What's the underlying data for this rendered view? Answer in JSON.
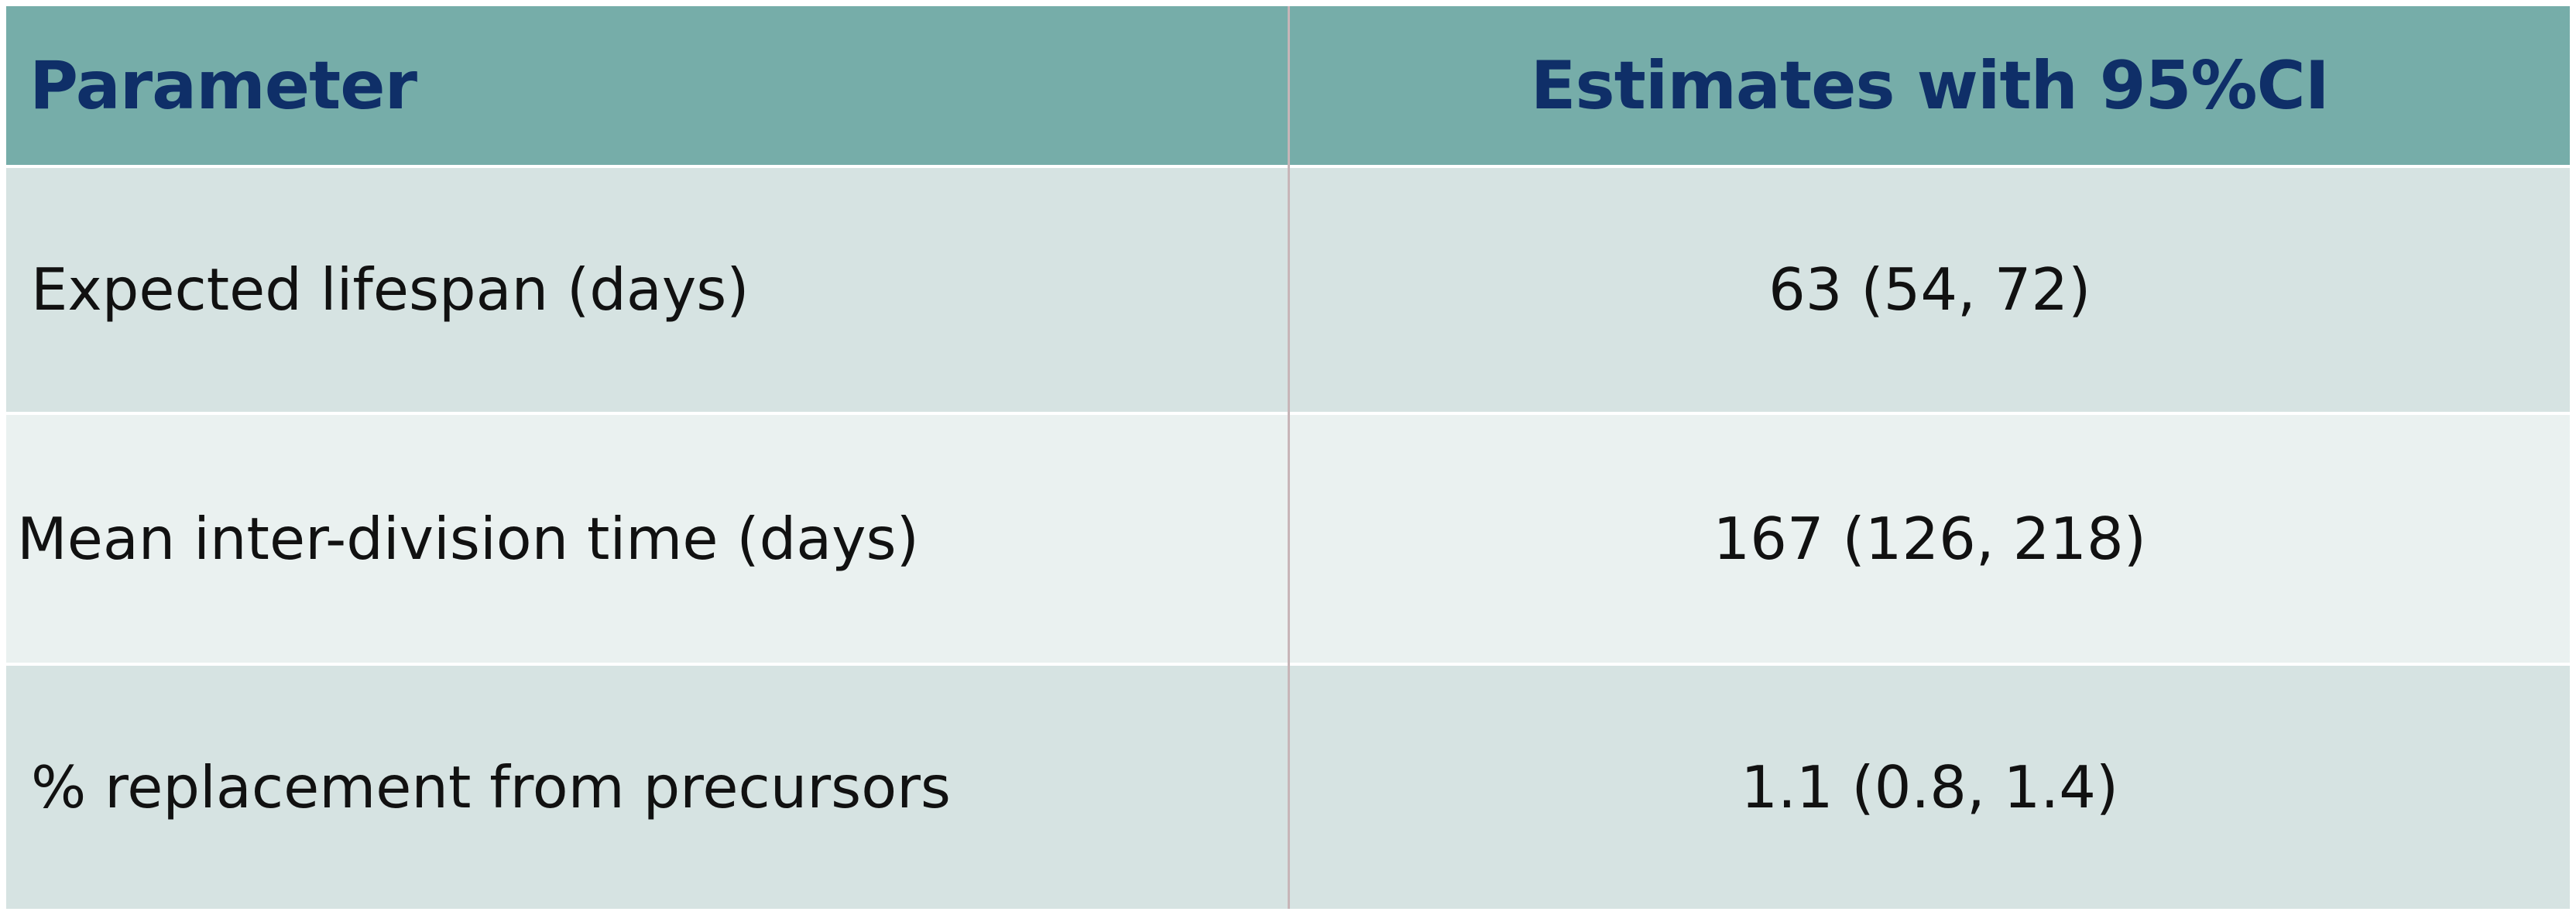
{
  "table": {
    "columns": [
      "Parameter",
      "Estimates with 95%CI"
    ],
    "rows": [
      {
        "parameter": "Expected lifespan (days)",
        "estimate": "63 (54, 72)"
      },
      {
        "parameter": "Mean inter-division time (days)",
        "estimate": "167 (126, 218)"
      },
      {
        "parameter": "% replacement from precursors",
        "estimate": "1.1 (0.8, 1.4)"
      }
    ]
  },
  "colors": {
    "header_bg": "#76ada9",
    "header_text": "#0f2f68",
    "row_dark": "#d6e3e2",
    "row_light": "#eaf1f0"
  }
}
